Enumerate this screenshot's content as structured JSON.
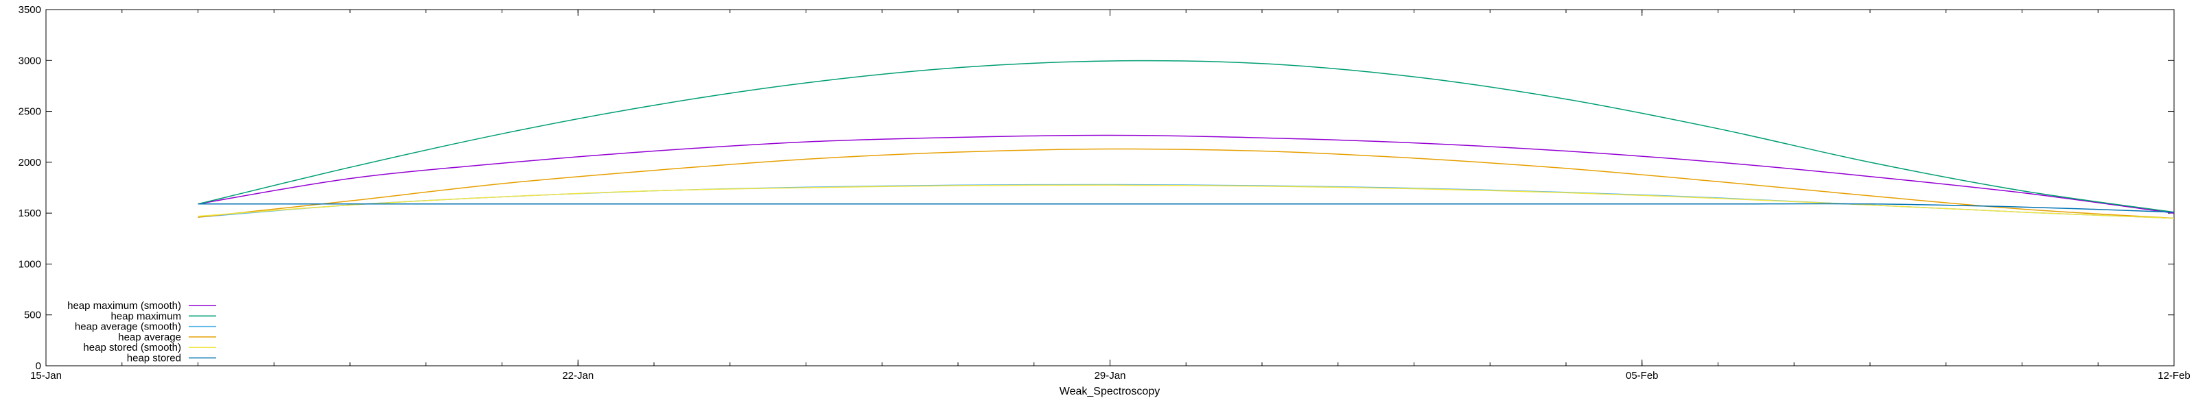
{
  "chart_data": {
    "type": "line",
    "title": "",
    "xlabel": "Weak_Spectroscopy",
    "ylabel": "",
    "x_axis": {
      "type": "date",
      "range": [
        "2018-01-15",
        "2018-02-12"
      ],
      "ticks": [
        {
          "date": "2018-01-15",
          "label": "15-Jan"
        },
        {
          "date": "2018-01-22",
          "label": "22-Jan"
        },
        {
          "date": "2018-01-29",
          "label": "29-Jan"
        },
        {
          "date": "2018-02-05",
          "label": "05-Feb"
        },
        {
          "date": "2018-02-12",
          "label": "12-Feb"
        }
      ],
      "minor_ticks_per_day": true
    },
    "ylim": [
      0,
      3500
    ],
    "y_ticks": [
      0,
      500,
      1000,
      1500,
      2000,
      2500,
      3000,
      3500
    ],
    "grid": false,
    "legend_placement": "bottom-left",
    "series": [
      {
        "name": "heap maximum (smooth)",
        "color": "#9400d3",
        "x": [
          "2018-01-17",
          "2018-01-19",
          "2018-01-21",
          "2018-01-23",
          "2018-01-25",
          "2018-01-27",
          "2018-01-29",
          "2018-01-31",
          "2018-02-02",
          "2018-02-04",
          "2018-02-06",
          "2018-02-08",
          "2018-02-10",
          "2018-02-12"
        ],
        "y": [
          1590,
          1840,
          1990,
          2110,
          2200,
          2245,
          2265,
          2240,
          2190,
          2110,
          2000,
          1860,
          1700,
          1500
        ]
      },
      {
        "name": "heap maximum",
        "color": "#009e73",
        "x": [
          "2018-01-17",
          "2018-01-19",
          "2018-01-21",
          "2018-01-23",
          "2018-01-25",
          "2018-01-27",
          "2018-01-29",
          "2018-01-31",
          "2018-02-02",
          "2018-02-04",
          "2018-02-06",
          "2018-02-08",
          "2018-02-10",
          "2018-02-12"
        ],
        "y": [
          1590,
          1950,
          2280,
          2560,
          2780,
          2930,
          2995,
          2970,
          2840,
          2620,
          2330,
          2000,
          1720,
          1510
        ]
      },
      {
        "name": "heap average (smooth)",
        "color": "#56b4e9",
        "x": [
          "2018-01-17",
          "2018-01-19",
          "2018-01-21",
          "2018-01-23",
          "2018-01-25",
          "2018-01-27",
          "2018-01-29",
          "2018-01-31",
          "2018-02-02",
          "2018-02-04",
          "2018-02-06",
          "2018-02-08",
          "2018-02-10",
          "2018-02-12"
        ],
        "y": [
          1460,
          1580,
          1660,
          1720,
          1755,
          1775,
          1780,
          1770,
          1745,
          1705,
          1650,
          1580,
          1510,
          1450
        ]
      },
      {
        "name": "heap average",
        "color": "#e69f00",
        "x": [
          "2018-01-17",
          "2018-01-19",
          "2018-01-21",
          "2018-01-23",
          "2018-01-25",
          "2018-01-27",
          "2018-01-29",
          "2018-01-31",
          "2018-02-02",
          "2018-02-04",
          "2018-02-06",
          "2018-02-08",
          "2018-02-10",
          "2018-02-12"
        ],
        "y": [
          1460,
          1620,
          1790,
          1920,
          2030,
          2100,
          2130,
          2110,
          2040,
          1940,
          1810,
          1670,
          1540,
          1450
        ]
      },
      {
        "name": "heap stored (smooth)",
        "color": "#f0e442",
        "x": [
          "2018-01-17",
          "2018-01-19",
          "2018-01-21",
          "2018-01-23",
          "2018-01-25",
          "2018-01-27",
          "2018-01-29",
          "2018-01-31",
          "2018-02-02",
          "2018-02-04",
          "2018-02-06",
          "2018-02-08",
          "2018-02-10",
          "2018-02-12"
        ],
        "y": [
          1470,
          1580,
          1660,
          1720,
          1750,
          1770,
          1775,
          1765,
          1740,
          1700,
          1645,
          1580,
          1510,
          1450
        ]
      },
      {
        "name": "heap stored",
        "color": "#0072b2",
        "x": [
          "2018-01-17",
          "2018-01-19",
          "2018-01-21",
          "2018-01-23",
          "2018-01-25",
          "2018-01-27",
          "2018-01-29",
          "2018-01-31",
          "2018-02-02",
          "2018-02-04",
          "2018-02-06",
          "2018-02-08",
          "2018-02-10",
          "2018-02-12"
        ],
        "y": [
          1590,
          1590,
          1590,
          1590,
          1590,
          1590,
          1590,
          1590,
          1590,
          1590,
          1590,
          1590,
          1560,
          1510
        ]
      }
    ]
  }
}
